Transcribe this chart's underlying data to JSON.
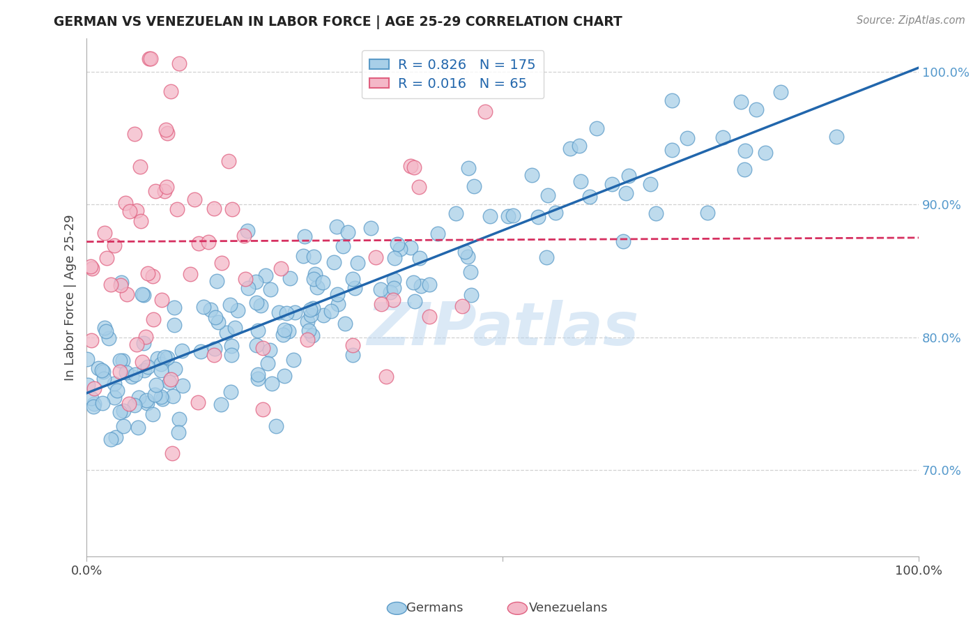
{
  "title": "GERMAN VS VENEZUELAN IN LABOR FORCE | AGE 25-29 CORRELATION CHART",
  "source": "Source: ZipAtlas.com",
  "ylabel": "In Labor Force | Age 25-29",
  "xlim": [
    0.0,
    1.0
  ],
  "ylim": [
    0.635,
    1.025
  ],
  "german_R": 0.826,
  "german_N": 175,
  "venezuelan_R": 0.016,
  "venezuelan_N": 65,
  "german_color": "#a8cfe8",
  "german_edge": "#5b9bc8",
  "venezuelan_color": "#f4b8c8",
  "venezuelan_edge": "#e06080",
  "trend_german_color": "#2166ac",
  "trend_venezuelan_color": "#d63060",
  "legend_label_german": "Germans",
  "legend_label_venezuelan": "Venezuelans",
  "watermark": "ZIPatlas",
  "watermark_color": "#b8d4ee",
  "background_color": "#ffffff",
  "grid_color": "#cccccc",
  "title_color": "#222222",
  "axis_label_color": "#444444",
  "right_tick_color": "#5599cc",
  "seed": 12345,
  "german_trend_x0": 0.0,
  "german_trend_y0": 0.758,
  "german_trend_x1": 1.0,
  "german_trend_y1": 1.003,
  "venezuelan_trend_x0": 0.0,
  "venezuelan_trend_y0": 0.872,
  "venezuelan_trend_x1": 1.0,
  "venezuelan_trend_y1": 0.875
}
